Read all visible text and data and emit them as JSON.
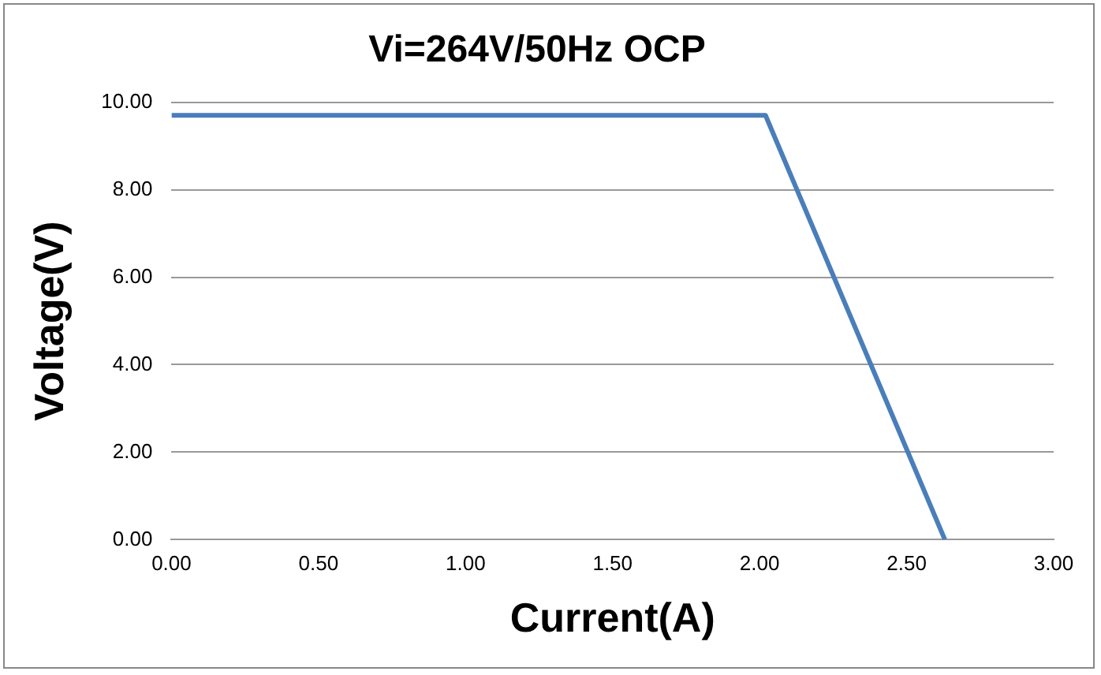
{
  "chart_data": {
    "type": "line",
    "title": "Vi=264V/50Hz OCP",
    "xlabel": "Current(A)",
    "ylabel": "Voltage(V)",
    "x": [
      0,
      2.02,
      2.63
    ],
    "series": [
      {
        "color": "#4a7ebb",
        "values": [
          9.7,
          9.7,
          0
        ]
      }
    ],
    "xlim": [
      0,
      3
    ],
    "xticks": [
      {
        "value": 0,
        "label": "0.00"
      },
      {
        "value": 0.5,
        "label": "0.50"
      },
      {
        "value": 1,
        "label": "1.00"
      },
      {
        "value": 1.5,
        "label": "1.50"
      },
      {
        "value": 2,
        "label": "2.00"
      },
      {
        "value": 2.5,
        "label": "2.50"
      },
      {
        "value": 3,
        "label": "3.00"
      }
    ],
    "ylim": [
      0,
      10
    ],
    "yticks": [
      {
        "value": 0,
        "label": "0.00"
      },
      {
        "value": 2,
        "label": "2.00"
      },
      {
        "value": 4,
        "label": "4.00"
      },
      {
        "value": 6,
        "label": "6.00"
      },
      {
        "value": 8,
        "label": "8.00"
      },
      {
        "value": 10,
        "label": "10.00"
      }
    ],
    "grid": "y",
    "legend": false,
    "marker": "none",
    "line_style": "solid"
  }
}
